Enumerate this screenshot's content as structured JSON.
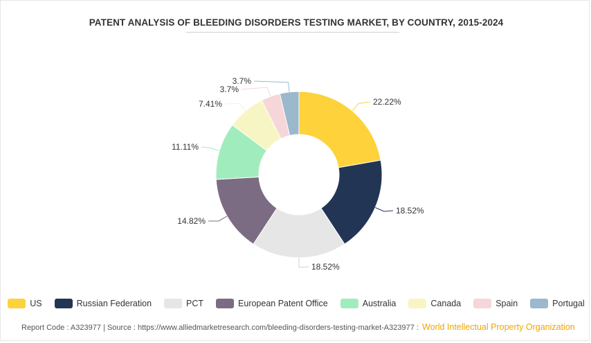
{
  "chart_data": {
    "type": "pie",
    "title": "PATENT ANALYSIS OF BLEEDING DISORDERS TESTING MARKET, BY COUNTRY, 2015-2024",
    "categories": [
      "US",
      "Russian Federation",
      "PCT",
      "European Patent Office",
      "Australia",
      "Canada",
      "Spain",
      "Portugal"
    ],
    "values": [
      22.22,
      18.52,
      18.52,
      14.82,
      11.11,
      7.41,
      3.7,
      3.7
    ],
    "value_labels": [
      "22.22%",
      "18.52%",
      "18.52%",
      "14.82%",
      "11.11%",
      "7.41%",
      "3.7%",
      "3.7%"
    ],
    "colors": [
      "#fdd23a",
      "#233555",
      "#e6e6e6",
      "#7c6c83",
      "#a1ecbd",
      "#f7f5c4",
      "#f6d6d8",
      "#9bb8cc"
    ],
    "donut": true,
    "legend_position": "bottom"
  },
  "footer": {
    "report_code": "Report Code : A323977",
    "separator": "|",
    "source": "Source : https://www.alliedmarketresearch.com/bleeding-disorders-testing-market-A323977 :",
    "brand": "World Intellectual Property Organization"
  }
}
